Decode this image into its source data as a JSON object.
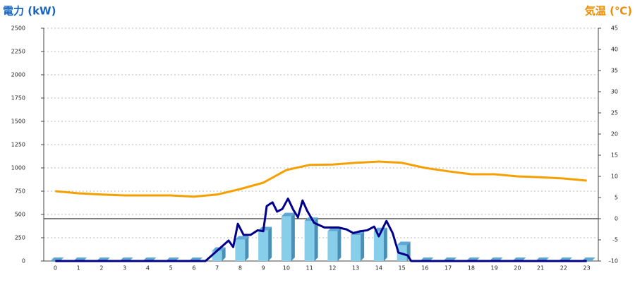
{
  "chart_data": {
    "type": "bar-line",
    "ylabel": "電力 (kW)",
    "y2label": "気温 (℃)",
    "categories": [
      "0",
      "1",
      "2",
      "3",
      "4",
      "5",
      "6",
      "7",
      "8",
      "9",
      "10",
      "11",
      "12",
      "13",
      "14",
      "15",
      "16",
      "17",
      "18",
      "19",
      "20",
      "21",
      "22",
      "23"
    ],
    "xlim": [
      -0.5,
      23.5
    ],
    "ylim": [
      0,
      2500
    ],
    "yticks": [
      0,
      250,
      500,
      750,
      1000,
      1250,
      1500,
      1750,
      2000,
      2250,
      2500
    ],
    "y2lim": [
      -10,
      45
    ],
    "y2ticks": [
      -10,
      -5,
      0,
      5,
      10,
      15,
      20,
      25,
      30,
      35,
      40,
      45
    ],
    "grid": true,
    "series": [
      {
        "kind": "bar",
        "color": "#87ceeb",
        "values": [
          0,
          0,
          0,
          0,
          0,
          0,
          0,
          110,
          230,
          330,
          480,
          430,
          320,
          280,
          320,
          170,
          0,
          0,
          0,
          0,
          0,
          0,
          0,
          0
        ]
      },
      {
        "kind": "line",
        "color": "#00008b",
        "x": [
          0,
          6.5,
          7,
          7.5,
          7.7,
          7.9,
          8.15,
          8.45,
          8.76,
          9,
          9.15,
          9.4,
          9.6,
          9.83,
          10.07,
          10.3,
          10.5,
          10.7,
          10.9,
          11.2,
          11.65,
          12.25,
          12.6,
          12.9,
          13.2,
          13.5,
          13.8,
          14,
          14.33,
          14.6,
          14.85,
          15.25,
          15.4,
          23
        ],
        "values": [
          0,
          0,
          110,
          220,
          150,
          400,
          280,
          280,
          330,
          320,
          590,
          630,
          530,
          560,
          670,
          550,
          470,
          650,
          540,
          410,
          360,
          360,
          340,
          300,
          320,
          330,
          370,
          265,
          430,
          300,
          90,
          60,
          0,
          0
        ]
      },
      {
        "kind": "line",
        "axis": "y2",
        "color": "#f5a000",
        "values": [
          6.5,
          6,
          5.7,
          5.5,
          5.5,
          5.5,
          5.2,
          5.7,
          7,
          8.5,
          11.5,
          12.7,
          12.8,
          13.2,
          13.5,
          13.2,
          12,
          11.2,
          10.5,
          10.5,
          10,
          9.8,
          9.5,
          9
        ]
      }
    ]
  }
}
